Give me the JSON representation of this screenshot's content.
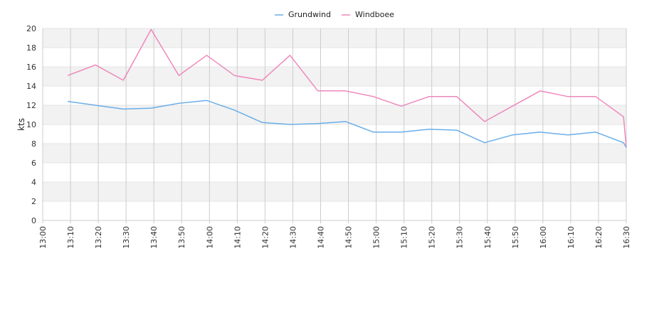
{
  "chart_data": {
    "type": "line",
    "ylabel": "kts",
    "ylim": [
      0,
      20
    ],
    "yticks": [
      0,
      2,
      4,
      6,
      8,
      10,
      12,
      14,
      16,
      18,
      20
    ],
    "x_ticks": [
      "13:00",
      "13:10",
      "13:20",
      "13:30",
      "13:40",
      "13:50",
      "14:00",
      "14:10",
      "14:20",
      "14:30",
      "14:40",
      "14:50",
      "15:00",
      "15:10",
      "15:20",
      "15:30",
      "15:40",
      "15:50",
      "16:00",
      "16:10",
      "16:20",
      "16:30"
    ],
    "legend": "top-center",
    "grid": "horizontal bands, vertical lines",
    "series": [
      {
        "name": "Grundwind",
        "color": "#6aaee8",
        "points": [
          [
            "13:09",
            12.4
          ],
          [
            "13:19",
            12.0
          ],
          [
            "13:29",
            11.6
          ],
          [
            "13:39",
            11.7
          ],
          [
            "13:49",
            12.2
          ],
          [
            "13:59",
            12.5
          ],
          [
            "14:09",
            11.5
          ],
          [
            "14:19",
            10.2
          ],
          [
            "14:29",
            10.0
          ],
          [
            "14:39",
            10.1
          ],
          [
            "14:49",
            10.3
          ],
          [
            "14:59",
            9.2
          ],
          [
            "15:09",
            9.2
          ],
          [
            "15:19",
            9.5
          ],
          [
            "15:29",
            9.4
          ],
          [
            "15:39",
            8.1
          ],
          [
            "15:49",
            8.9
          ],
          [
            "15:59",
            9.2
          ],
          [
            "16:09",
            8.9
          ],
          [
            "16:19",
            9.2
          ],
          [
            "16:29",
            8.1
          ],
          [
            "16:30",
            7.6
          ]
        ]
      },
      {
        "name": "Windboee",
        "color": "#ee88bb",
        "points": [
          [
            "13:09",
            15.1
          ],
          [
            "13:19",
            16.2
          ],
          [
            "13:29",
            14.6
          ],
          [
            "13:39",
            19.9
          ],
          [
            "13:49",
            15.1
          ],
          [
            "13:59",
            17.2
          ],
          [
            "14:09",
            15.1
          ],
          [
            "14:19",
            14.6
          ],
          [
            "14:29",
            17.2
          ],
          [
            "14:39",
            13.5
          ],
          [
            "14:49",
            13.5
          ],
          [
            "14:59",
            12.9
          ],
          [
            "15:09",
            11.9
          ],
          [
            "15:19",
            12.9
          ],
          [
            "15:29",
            12.9
          ],
          [
            "15:39",
            10.3
          ],
          [
            "15:49",
            11.9
          ],
          [
            "15:59",
            13.5
          ],
          [
            "16:09",
            12.9
          ],
          [
            "16:19",
            12.9
          ],
          [
            "16:29",
            10.8
          ],
          [
            "16:30",
            7.6
          ]
        ]
      }
    ]
  }
}
